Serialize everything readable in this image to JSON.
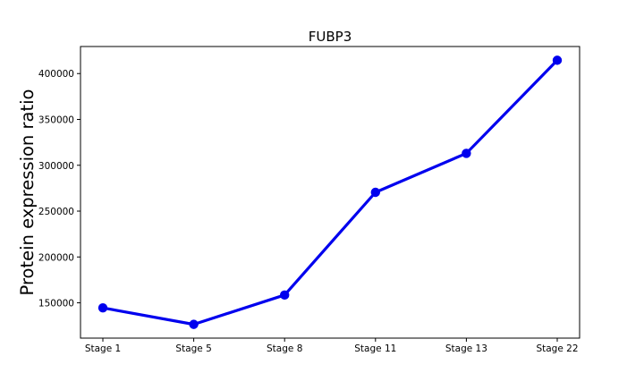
{
  "chart_data": {
    "type": "line",
    "title": "FUBP3",
    "xlabel": "",
    "ylabel": "Protein expression ratio",
    "categories": [
      "Stage 1",
      "Stage 5",
      "Stage 8",
      "Stage 11",
      "Stage 13",
      "Stage 22"
    ],
    "series": [
      {
        "values": [
          144500,
          126500,
          158500,
          270500,
          313000,
          414500
        ],
        "color": "#0000ee"
      }
    ],
    "ylim": [
      111500,
      429500
    ],
    "yticks": [
      150000,
      200000,
      250000,
      300000,
      350000,
      400000
    ],
    "ytick_labels": [
      "150000",
      "200000",
      "250000",
      "300000",
      "350000",
      "400000"
    ],
    "grid": false,
    "legend": "none",
    "marker": "filled-circle"
  }
}
